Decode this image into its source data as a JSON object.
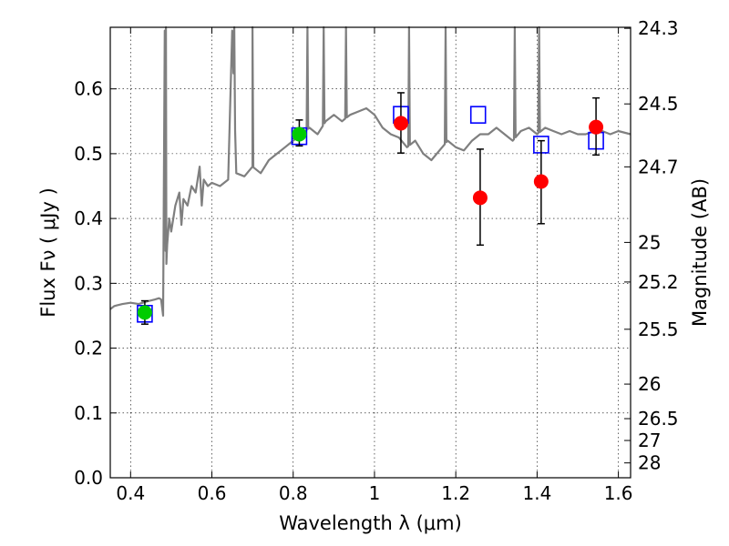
{
  "chart_data": {
    "type": "scatter",
    "title": "",
    "xlabel": "Wavelength  λ (μm)",
    "ylabel": "Flux  Fν  ( μJy )",
    "y2label": "Magnitude (AB)",
    "xlim": [
      0.35,
      1.63
    ],
    "ylim": [
      0.0,
      0.695
    ],
    "grid": true,
    "legend": "none",
    "x_ticks": [
      0.4,
      0.6,
      0.8,
      1.0,
      1.2,
      1.4,
      1.6
    ],
    "x_tick_labels": [
      "0.4",
      "0.6",
      "0.8",
      "1",
      "1.2",
      "1.4",
      "1.6"
    ],
    "y_ticks": [
      0.0,
      0.1,
      0.2,
      0.3,
      0.4,
      0.5,
      0.6
    ],
    "y_tick_labels": [
      "0.0",
      "0.1",
      "0.2",
      "0.3",
      "0.4",
      "0.5",
      "0.6"
    ],
    "y2_ticks": [
      {
        "label": "24.3",
        "flux": 0.6934
      },
      {
        "label": "24.5",
        "flux": 0.5768
      },
      {
        "label": "24.7",
        "flux": 0.4797
      },
      {
        "label": "25",
        "flux": 0.3631
      },
      {
        "label": "25.2",
        "flux": 0.302
      },
      {
        "label": "25.5",
        "flux": 0.2291
      },
      {
        "label": "26",
        "flux": 0.1445
      },
      {
        "label": "26.5",
        "flux": 0.0912
      },
      {
        "label": "27",
        "flux": 0.0575
      },
      {
        "label": "28",
        "flux": 0.0229
      }
    ],
    "colors": {
      "template": "#7f7f7f",
      "model": "#0000ff",
      "observed_red": "#ff0000",
      "observed_green": "#00cc00",
      "errorbar": "#000000"
    },
    "series": [
      {
        "kind": "line",
        "x": [
          0.35,
          0.36,
          0.38,
          0.4,
          0.42,
          0.44,
          0.46,
          0.47,
          0.475,
          0.48,
          0.484,
          0.486,
          0.488,
          0.49,
          0.495,
          0.5,
          0.51,
          0.52,
          0.525,
          0.53,
          0.54,
          0.55,
          0.56,
          0.57,
          0.575,
          0.58,
          0.59,
          0.6,
          0.62,
          0.64,
          0.65,
          0.66,
          0.68,
          0.7,
          0.72,
          0.74,
          0.76,
          0.78,
          0.8,
          0.82,
          0.84,
          0.86,
          0.88,
          0.9,
          0.92,
          0.94,
          0.96,
          0.98,
          1.0,
          1.02,
          1.04,
          1.06,
          1.08,
          1.1,
          1.12,
          1.14,
          1.16,
          1.18,
          1.2,
          1.22,
          1.24,
          1.26,
          1.28,
          1.3,
          1.32,
          1.34,
          1.36,
          1.38,
          1.4,
          1.42,
          1.44,
          1.46,
          1.48,
          1.5,
          1.52,
          1.54,
          1.56,
          1.58,
          1.6,
          1.63
        ],
        "y": [
          0.26,
          0.265,
          0.268,
          0.27,
          0.268,
          0.272,
          0.275,
          0.277,
          0.275,
          0.25,
          0.69,
          0.35,
          0.33,
          0.36,
          0.4,
          0.38,
          0.42,
          0.44,
          0.39,
          0.43,
          0.42,
          0.45,
          0.44,
          0.48,
          0.42,
          0.46,
          0.45,
          0.455,
          0.45,
          0.46,
          0.69,
          0.47,
          0.465,
          0.48,
          0.47,
          0.49,
          0.5,
          0.51,
          0.52,
          0.53,
          0.54,
          0.53,
          0.55,
          0.56,
          0.55,
          0.56,
          0.565,
          0.57,
          0.56,
          0.54,
          0.53,
          0.525,
          0.51,
          0.52,
          0.5,
          0.49,
          0.505,
          0.52,
          0.51,
          0.505,
          0.52,
          0.53,
          0.53,
          0.54,
          0.53,
          0.52,
          0.535,
          0.54,
          0.53,
          0.54,
          0.535,
          0.53,
          0.535,
          0.53,
          0.53,
          0.535,
          0.535,
          0.53,
          0.535,
          0.53
        ],
        "spikes": [
          {
            "x": 0.487,
            "y": 0.695
          },
          {
            "x": 0.655,
            "y": 0.695
          },
          {
            "x": 0.7,
            "y": 0.695
          },
          {
            "x": 0.835,
            "y": 0.695
          },
          {
            "x": 0.875,
            "y": 0.695
          },
          {
            "x": 0.93,
            "y": 0.695
          },
          {
            "x": 1.085,
            "y": 0.695
          },
          {
            "x": 1.175,
            "y": 0.695
          },
          {
            "x": 1.345,
            "y": 0.695
          },
          {
            "x": 1.405,
            "y": 0.695
          }
        ]
      },
      {
        "kind": "open-squares",
        "x": [
          0.435,
          0.815,
          1.065,
          1.255,
          1.41,
          1.545
        ],
        "y": [
          0.253,
          0.527,
          0.56,
          0.56,
          0.514,
          0.52
        ]
      },
      {
        "kind": "points-with-errors",
        "color": "green",
        "x": [
          0.435,
          0.815
        ],
        "y": [
          0.255,
          0.53
        ],
        "err_low": [
          0.018,
          0.018
        ],
        "err_high": [
          0.018,
          0.022
        ]
      },
      {
        "kind": "points-with-errors",
        "color": "red",
        "x": [
          1.065,
          1.26,
          1.41,
          1.545
        ],
        "y": [
          0.547,
          0.432,
          0.457,
          0.541
        ],
        "err_low": [
          0.046,
          0.073,
          0.065,
          0.043
        ],
        "err_high": [
          0.047,
          0.075,
          0.063,
          0.045
        ]
      }
    ]
  }
}
